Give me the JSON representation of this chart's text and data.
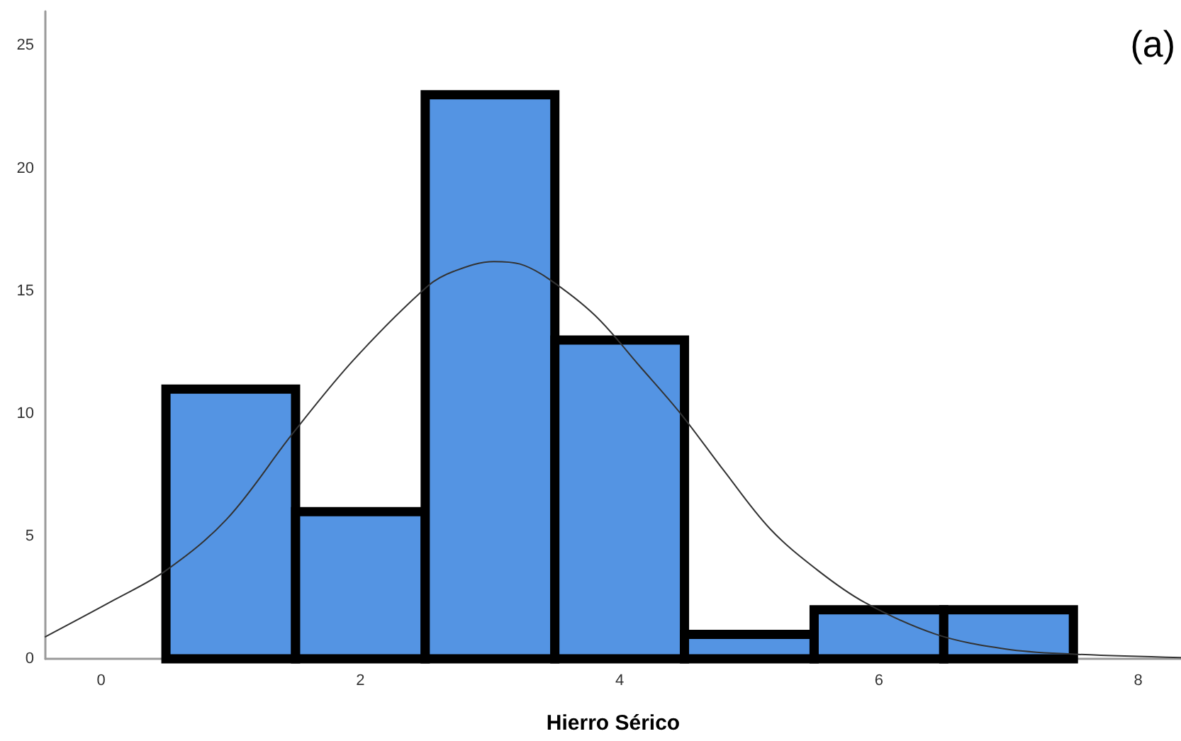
{
  "chart_data": {
    "type": "histogram",
    "xlabel": "Hierro Sérico",
    "annotations": [
      "(a)"
    ],
    "bins": [
      0.5,
      1.5,
      2.5,
      3.5,
      4.5,
      5.5,
      6.5,
      7.5
    ],
    "series": [
      {
        "color": "#5494e3",
        "values": [
          11,
          6,
          23,
          13,
          1,
          2,
          2
        ]
      },
      {
        "type": "line",
        "color": "#333333",
        "x": [
          -0.43,
          0.1,
          0.5,
          0.97,
          1.48,
          1.95,
          2.52,
          2.72,
          3.03,
          3.23,
          3.45,
          3.81,
          4.16,
          4.47,
          4.8,
          5.16,
          5.53,
          5.89,
          6.44,
          6.98,
          7.46,
          8.33
        ],
        "values": [
          0.9,
          2.4,
          3.6,
          5.7,
          9.2,
          12.2,
          15.2,
          15.8,
          16.2,
          16.1,
          15.5,
          14.0,
          11.9,
          10.0,
          7.7,
          5.3,
          3.6,
          2.3,
          1.0,
          0.4,
          0.2,
          0.05
        ]
      }
    ],
    "xlim": [
      -0.43,
      8.33
    ],
    "xticks": [
      0,
      2,
      4,
      6,
      8
    ],
    "ylim": [
      0,
      26.4
    ],
    "yticks": [
      0,
      5,
      10,
      15,
      20,
      25
    ]
  }
}
